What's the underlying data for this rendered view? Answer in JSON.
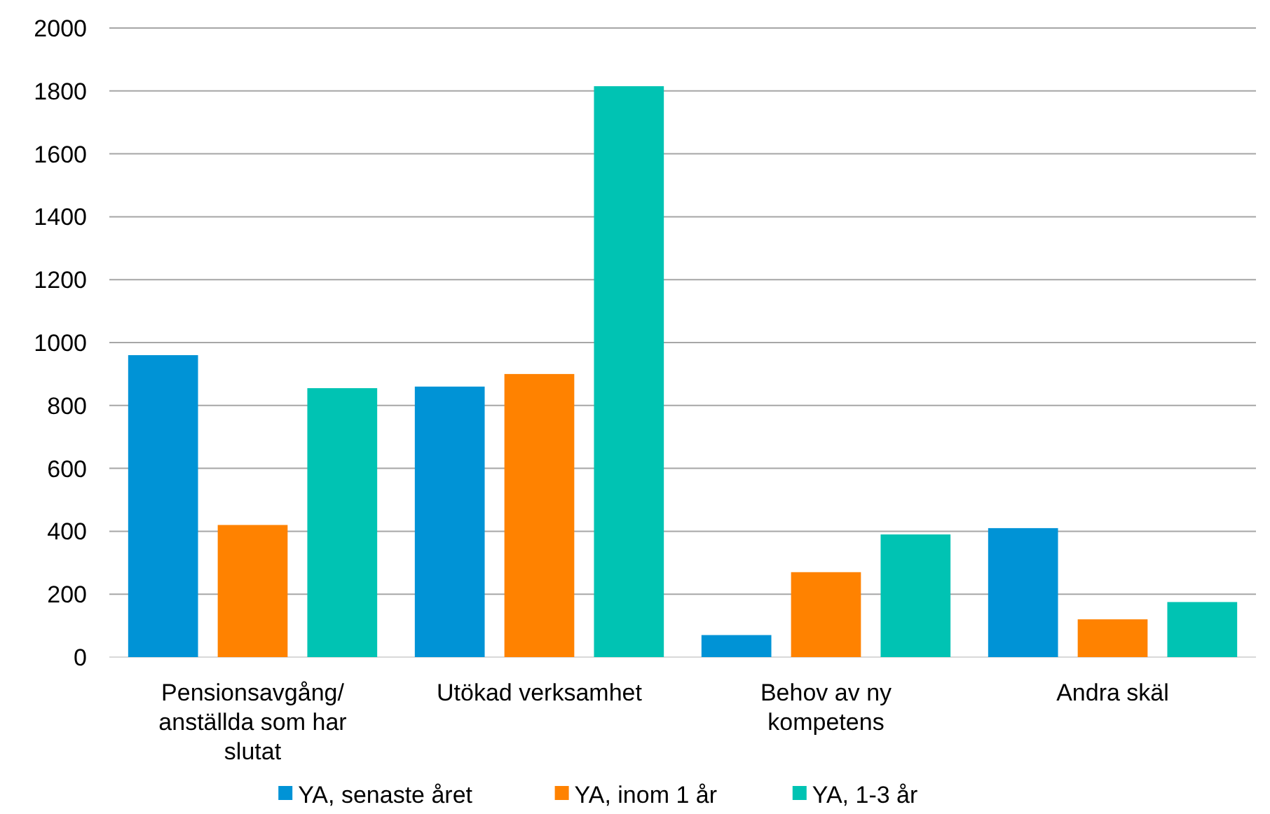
{
  "chart_data": {
    "type": "bar",
    "categories": [
      "Pensionsavgång/ anställda som har slutat",
      "Utökad verksamhet",
      "Behov av ny kompetens",
      "Andra skäl"
    ],
    "series": [
      {
        "name": "YA, senaste året",
        "color": "#0093d6",
        "values": [
          960,
          860,
          70,
          410
        ]
      },
      {
        "name": "YA, inom 1 år",
        "color": "#ff8200",
        "values": [
          420,
          900,
          270,
          120
        ]
      },
      {
        "name": "YA, 1-3 år",
        "color": "#00c3b3",
        "values": [
          855,
          1815,
          390,
          175
        ]
      }
    ],
    "ylim": [
      0,
      2000
    ],
    "yticks": [
      0,
      200,
      400,
      600,
      800,
      1000,
      1200,
      1400,
      1600,
      1800,
      2000
    ],
    "grid": "y",
    "legend": "bottom"
  }
}
